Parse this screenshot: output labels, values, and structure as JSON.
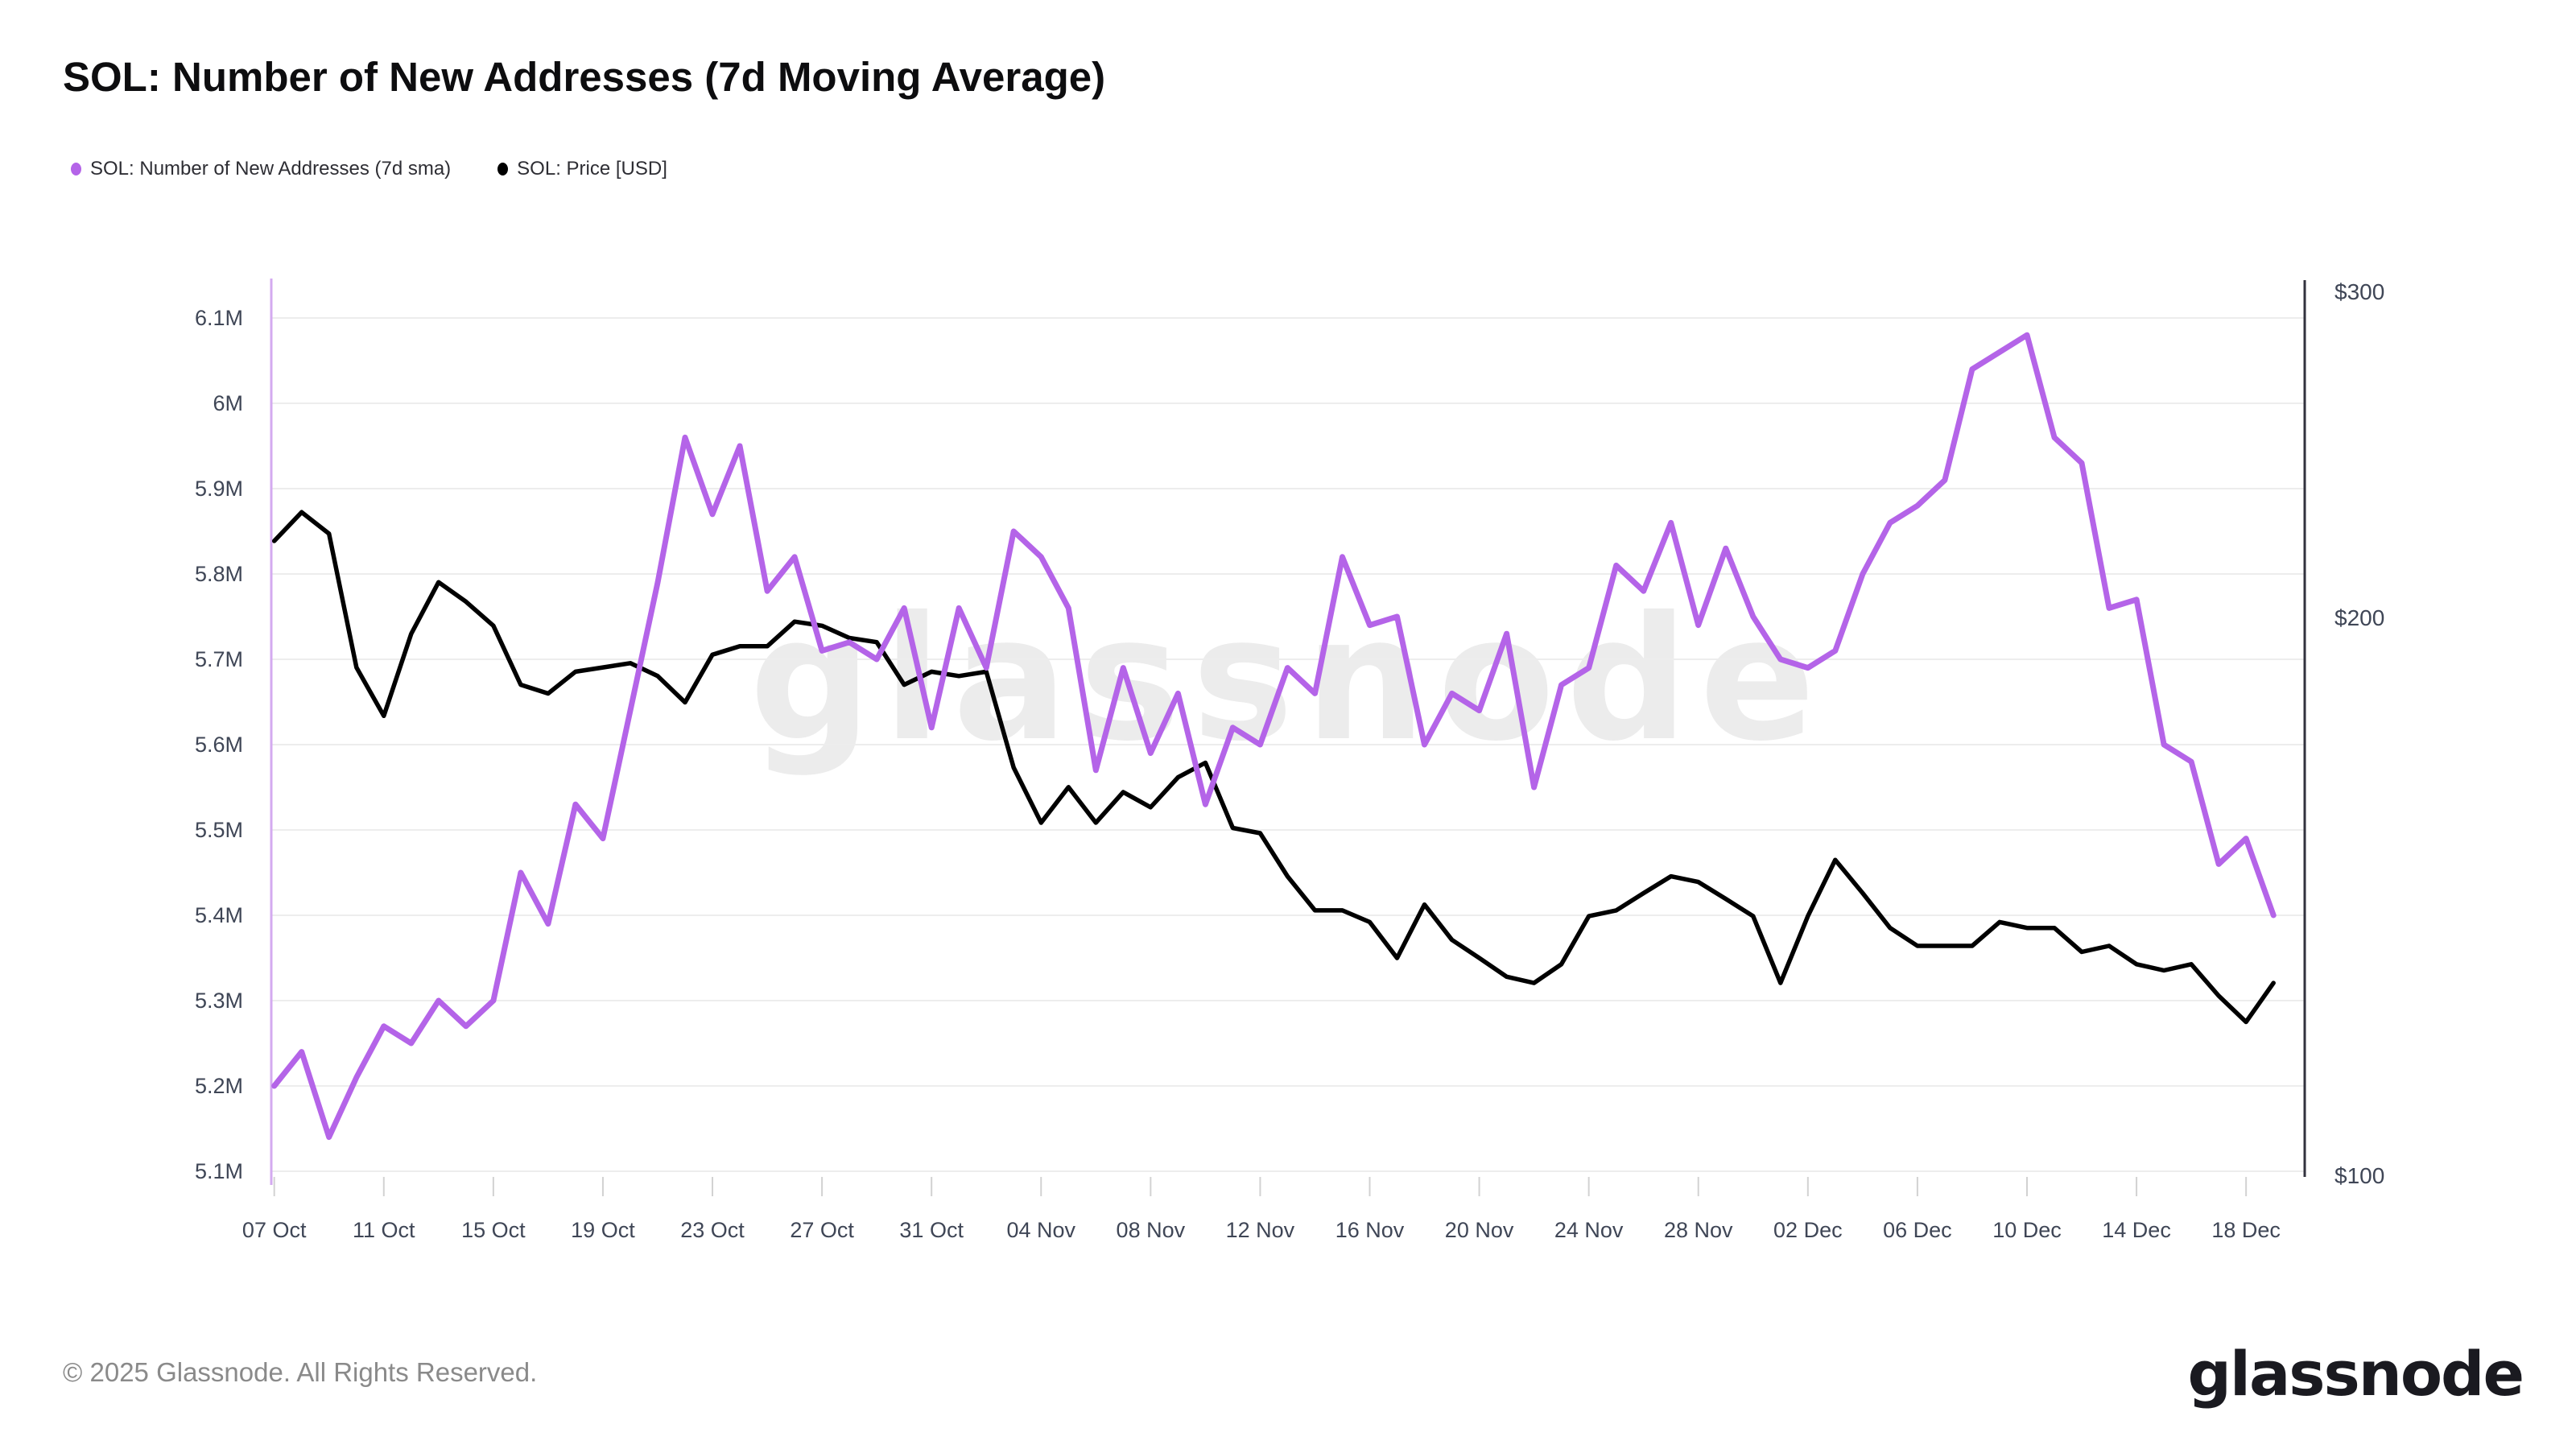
{
  "title": "SOL: Number of New Addresses (7d Moving Average)",
  "watermark": "glassnode",
  "legend": [
    {
      "label": "SOL: Number of New Addresses (7d sma)",
      "color": "#b464e8"
    },
    {
      "label": "SOL: Price [USD]",
      "color": "#000000"
    }
  ],
  "footer": {
    "copyright": "© 2025 Glassnode. All Rights Reserved.",
    "logo": "glassnode"
  },
  "chart_data": {
    "type": "line",
    "title": "SOL: Number of New Addresses (7d Moving Average)",
    "grid": "horizontal",
    "legend_position": "top-left",
    "x": [
      "07 Oct",
      "08 Oct",
      "09 Oct",
      "10 Oct",
      "11 Oct",
      "12 Oct",
      "13 Oct",
      "14 Oct",
      "15 Oct",
      "16 Oct",
      "17 Oct",
      "18 Oct",
      "19 Oct",
      "20 Oct",
      "21 Oct",
      "22 Oct",
      "23 Oct",
      "24 Oct",
      "25 Oct",
      "26 Oct",
      "27 Oct",
      "28 Oct",
      "29 Oct",
      "30 Oct",
      "31 Oct",
      "01 Nov",
      "02 Nov",
      "03 Nov",
      "04 Nov",
      "05 Nov",
      "06 Nov",
      "07 Nov",
      "08 Nov",
      "09 Nov",
      "10 Nov",
      "11 Nov",
      "12 Nov",
      "13 Nov",
      "14 Nov",
      "15 Nov",
      "16 Nov",
      "17 Nov",
      "18 Nov",
      "19 Nov",
      "20 Nov",
      "21 Nov",
      "22 Nov",
      "23 Nov",
      "24 Nov",
      "25 Nov",
      "26 Nov",
      "27 Nov",
      "28 Nov",
      "29 Nov",
      "30 Nov",
      "01 Dec",
      "02 Dec",
      "03 Dec",
      "04 Dec",
      "05 Dec",
      "06 Dec",
      "07 Dec",
      "08 Dec",
      "09 Dec",
      "10 Dec",
      "11 Dec",
      "12 Dec",
      "13 Dec",
      "14 Dec",
      "15 Dec",
      "16 Dec",
      "17 Dec",
      "18 Dec",
      "19 Dec"
    ],
    "x_tick_labels": [
      "07 Oct",
      "11 Oct",
      "15 Oct",
      "19 Oct",
      "23 Oct",
      "27 Oct",
      "31 Oct",
      "04 Nov",
      "08 Nov",
      "12 Nov",
      "16 Nov",
      "20 Nov",
      "24 Nov",
      "28 Nov",
      "02 Dec",
      "06 Dec",
      "10 Dec",
      "14 Dec",
      "18 Dec"
    ],
    "x_tick_days": [
      0,
      4,
      8,
      12,
      16,
      20,
      24,
      28,
      32,
      36,
      40,
      44,
      48,
      52,
      56,
      60,
      64,
      68,
      72
    ],
    "left_axis": {
      "scale": "linear",
      "range": [
        5.1,
        6.1
      ],
      "ticks": [
        "6.1M",
        "6M",
        "5.9M",
        "5.8M",
        "5.7M",
        "5.6M",
        "5.5M",
        "5.4M",
        "5.3M",
        "5.2M",
        "5.1M"
      ],
      "tick_values": [
        6.1,
        6.0,
        5.9,
        5.8,
        5.7,
        5.6,
        5.5,
        5.4,
        5.3,
        5.2,
        5.1
      ],
      "unit": "M addresses"
    },
    "right_axis": {
      "scale": "log",
      "range": [
        100,
        300
      ],
      "ticks": [
        "$300",
        "$200",
        "$100"
      ],
      "tick_values": [
        300,
        200,
        100
      ],
      "unit": "USD"
    },
    "series": [
      {
        "name": "SOL: Number of New Addresses (7d sma)",
        "axis": "left",
        "color": "#b464e8",
        "unit": "M",
        "values": [
          5.2,
          5.24,
          5.14,
          5.21,
          5.27,
          5.25,
          5.3,
          5.27,
          5.3,
          5.45,
          5.39,
          5.53,
          5.49,
          5.64,
          5.79,
          5.96,
          5.87,
          5.95,
          5.78,
          5.82,
          5.71,
          5.72,
          5.7,
          5.76,
          5.62,
          5.76,
          5.69,
          5.85,
          5.82,
          5.76,
          5.57,
          5.69,
          5.59,
          5.66,
          5.53,
          5.62,
          5.6,
          5.69,
          5.66,
          5.82,
          5.74,
          5.75,
          5.6,
          5.66,
          5.64,
          5.73,
          5.55,
          5.67,
          5.69,
          5.81,
          5.78,
          5.86,
          5.74,
          5.83,
          5.75,
          5.7,
          5.69,
          5.71,
          5.8,
          5.86,
          5.88,
          5.91,
          6.04,
          6.06,
          6.08,
          5.96,
          5.93,
          5.76,
          5.77,
          5.6,
          5.58,
          5.46,
          5.49,
          5.4
        ]
      },
      {
        "name": "SOL: Price [USD]",
        "axis": "right",
        "color": "#000000",
        "unit": "$",
        "values": [
          220,
          228,
          222,
          188,
          177,
          196,
          209,
          204,
          198,
          184,
          182,
          187,
          188,
          189,
          186,
          180,
          191,
          193,
          193,
          199,
          198,
          195,
          194,
          184,
          187,
          186,
          187,
          166,
          155,
          162,
          155,
          161,
          158,
          164,
          167,
          154,
          153,
          145,
          139,
          139,
          137,
          131,
          140,
          134,
          131,
          128,
          127,
          130,
          138,
          139,
          142,
          145,
          144,
          141,
          138,
          127,
          138,
          148,
          142,
          136,
          133,
          133,
          133,
          137,
          136,
          136,
          132,
          133,
          130,
          129,
          130,
          125,
          121,
          127
        ]
      }
    ]
  }
}
